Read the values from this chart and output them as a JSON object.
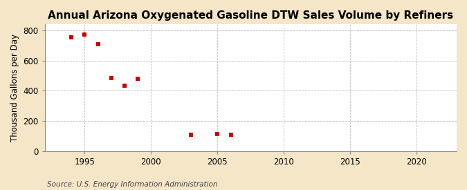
{
  "title": "Annual Arizona Oxygenated Gasoline DTW Sales Volume by Refiners",
  "ylabel": "Thousand Gallons per Day",
  "source": "Source: U.S. Energy Information Administration",
  "fig_background_color": "#f5e6c8",
  "plot_background_color": "#ffffff",
  "x_data": [
    1994,
    1995,
    1996,
    1997,
    1998,
    1999,
    2003,
    2005,
    2006
  ],
  "y_data": [
    755,
    775,
    710,
    485,
    435,
    480,
    110,
    115,
    110
  ],
  "marker_color": "#cc0000",
  "marker": "s",
  "marker_size": 4,
  "xlim": [
    1992,
    2023
  ],
  "ylim": [
    0,
    840
  ],
  "yticks": [
    0,
    200,
    400,
    600,
    800
  ],
  "xticks": [
    1995,
    2000,
    2005,
    2010,
    2015,
    2020
  ],
  "grid_color": "#aaaaaa",
  "title_fontsize": 11,
  "label_fontsize": 8.5,
  "tick_fontsize": 8.5,
  "source_fontsize": 7.5
}
